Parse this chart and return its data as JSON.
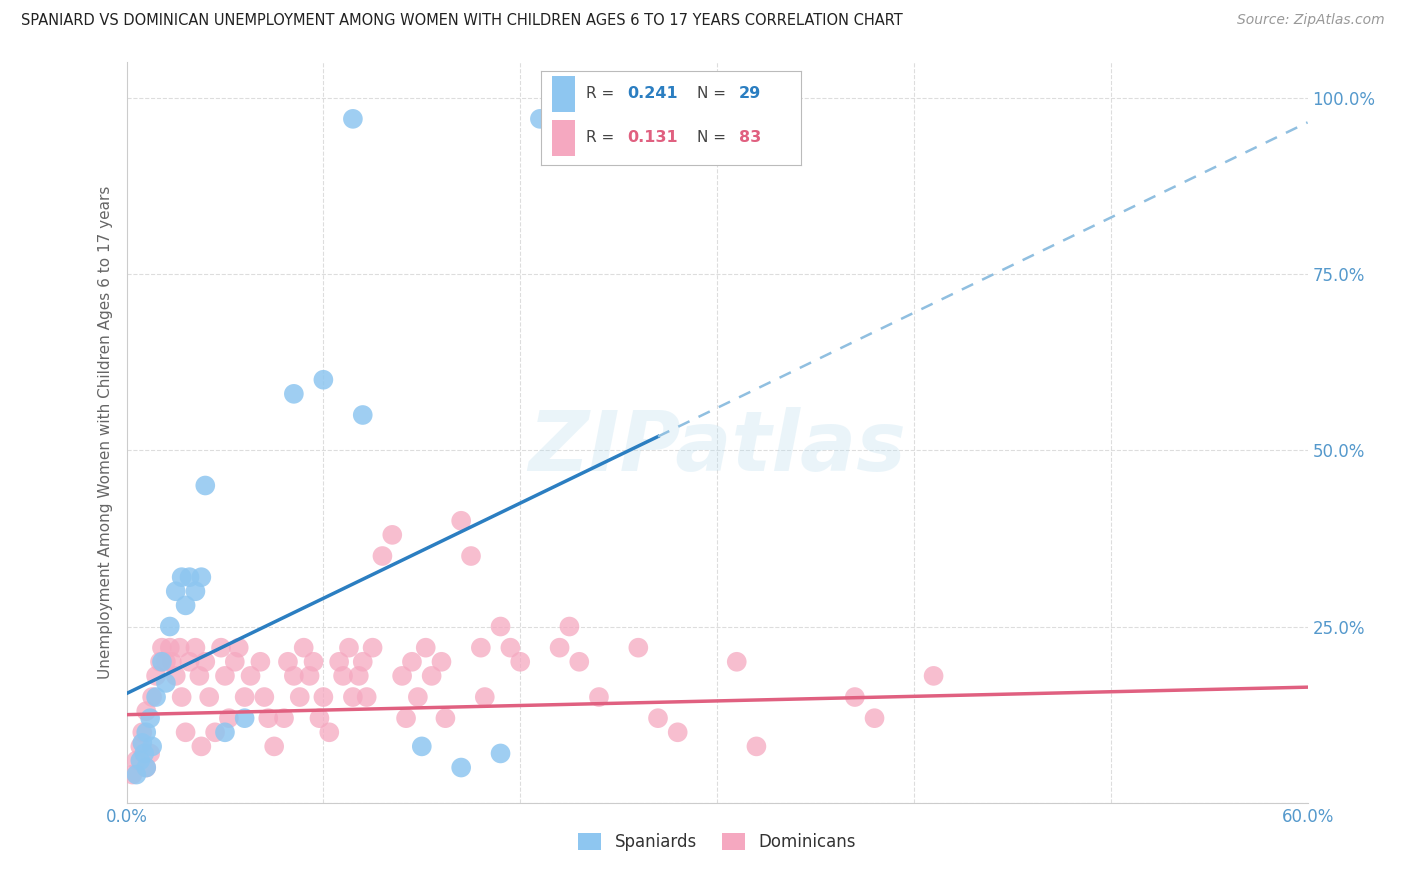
{
  "title": "SPANIARD VS DOMINICAN UNEMPLOYMENT AMONG WOMEN WITH CHILDREN AGES 6 TO 17 YEARS CORRELATION CHART",
  "source": "Source: ZipAtlas.com",
  "ylabel": "Unemployment Among Women with Children Ages 6 to 17 years",
  "xlim": [
    0.0,
    0.6
  ],
  "ylim": [
    0.0,
    1.05
  ],
  "xtick_positions": [
    0.0,
    0.1,
    0.2,
    0.3,
    0.4,
    0.5,
    0.6
  ],
  "xticklabels": [
    "0.0%",
    "",
    "",
    "",
    "",
    "",
    "60.0%"
  ],
  "yticks_right": [
    0.0,
    0.25,
    0.5,
    0.75,
    1.0
  ],
  "ytick_right_labels": [
    "",
    "25.0%",
    "50.0%",
    "75.0%",
    "100.0%"
  ],
  "spaniards_R": "0.241",
  "spaniards_N": "29",
  "dominicans_R": "0.131",
  "dominicans_N": "83",
  "spaniard_color": "#8EC6F0",
  "dominican_color": "#F5A8C0",
  "spaniard_line_color": "#2B7EC1",
  "dominican_line_color": "#E06080",
  "spaniard_line_solid_end": 0.27,
  "sp_slope": 1.35,
  "sp_intercept": 0.155,
  "do_slope": 0.065,
  "do_intercept": 0.125,
  "spaniard_scatter": [
    [
      0.005,
      0.04
    ],
    [
      0.007,
      0.06
    ],
    [
      0.008,
      0.085
    ],
    [
      0.009,
      0.07
    ],
    [
      0.01,
      0.05
    ],
    [
      0.01,
      0.1
    ],
    [
      0.012,
      0.12
    ],
    [
      0.013,
      0.08
    ],
    [
      0.015,
      0.15
    ],
    [
      0.018,
      0.2
    ],
    [
      0.02,
      0.17
    ],
    [
      0.022,
      0.25
    ],
    [
      0.025,
      0.3
    ],
    [
      0.028,
      0.32
    ],
    [
      0.03,
      0.28
    ],
    [
      0.032,
      0.32
    ],
    [
      0.035,
      0.3
    ],
    [
      0.038,
      0.32
    ],
    [
      0.04,
      0.45
    ],
    [
      0.05,
      0.1
    ],
    [
      0.06,
      0.12
    ],
    [
      0.085,
      0.58
    ],
    [
      0.1,
      0.6
    ],
    [
      0.12,
      0.55
    ],
    [
      0.15,
      0.08
    ],
    [
      0.17,
      0.05
    ],
    [
      0.19,
      0.07
    ],
    [
      0.115,
      0.97
    ],
    [
      0.21,
      0.97
    ]
  ],
  "dominican_scatter": [
    [
      0.003,
      0.04
    ],
    [
      0.005,
      0.06
    ],
    [
      0.007,
      0.08
    ],
    [
      0.008,
      0.1
    ],
    [
      0.01,
      0.13
    ],
    [
      0.01,
      0.05
    ],
    [
      0.012,
      0.07
    ],
    [
      0.013,
      0.15
    ],
    [
      0.015,
      0.18
    ],
    [
      0.017,
      0.2
    ],
    [
      0.018,
      0.22
    ],
    [
      0.02,
      0.2
    ],
    [
      0.022,
      0.22
    ],
    [
      0.023,
      0.2
    ],
    [
      0.025,
      0.18
    ],
    [
      0.027,
      0.22
    ],
    [
      0.028,
      0.15
    ],
    [
      0.03,
      0.1
    ],
    [
      0.032,
      0.2
    ],
    [
      0.035,
      0.22
    ],
    [
      0.037,
      0.18
    ],
    [
      0.038,
      0.08
    ],
    [
      0.04,
      0.2
    ],
    [
      0.042,
      0.15
    ],
    [
      0.045,
      0.1
    ],
    [
      0.048,
      0.22
    ],
    [
      0.05,
      0.18
    ],
    [
      0.052,
      0.12
    ],
    [
      0.055,
      0.2
    ],
    [
      0.057,
      0.22
    ],
    [
      0.06,
      0.15
    ],
    [
      0.063,
      0.18
    ],
    [
      0.068,
      0.2
    ],
    [
      0.07,
      0.15
    ],
    [
      0.072,
      0.12
    ],
    [
      0.075,
      0.08
    ],
    [
      0.08,
      0.12
    ],
    [
      0.082,
      0.2
    ],
    [
      0.085,
      0.18
    ],
    [
      0.088,
      0.15
    ],
    [
      0.09,
      0.22
    ],
    [
      0.093,
      0.18
    ],
    [
      0.095,
      0.2
    ],
    [
      0.098,
      0.12
    ],
    [
      0.1,
      0.15
    ],
    [
      0.103,
      0.1
    ],
    [
      0.108,
      0.2
    ],
    [
      0.11,
      0.18
    ],
    [
      0.113,
      0.22
    ],
    [
      0.115,
      0.15
    ],
    [
      0.118,
      0.18
    ],
    [
      0.12,
      0.2
    ],
    [
      0.122,
      0.15
    ],
    [
      0.125,
      0.22
    ],
    [
      0.13,
      0.35
    ],
    [
      0.135,
      0.38
    ],
    [
      0.14,
      0.18
    ],
    [
      0.142,
      0.12
    ],
    [
      0.145,
      0.2
    ],
    [
      0.148,
      0.15
    ],
    [
      0.152,
      0.22
    ],
    [
      0.155,
      0.18
    ],
    [
      0.16,
      0.2
    ],
    [
      0.162,
      0.12
    ],
    [
      0.17,
      0.4
    ],
    [
      0.175,
      0.35
    ],
    [
      0.18,
      0.22
    ],
    [
      0.182,
      0.15
    ],
    [
      0.19,
      0.25
    ],
    [
      0.195,
      0.22
    ],
    [
      0.2,
      0.2
    ],
    [
      0.22,
      0.22
    ],
    [
      0.225,
      0.25
    ],
    [
      0.23,
      0.2
    ],
    [
      0.24,
      0.15
    ],
    [
      0.26,
      0.22
    ],
    [
      0.27,
      0.12
    ],
    [
      0.28,
      0.1
    ],
    [
      0.31,
      0.2
    ],
    [
      0.32,
      0.08
    ],
    [
      0.37,
      0.15
    ],
    [
      0.38,
      0.12
    ],
    [
      0.41,
      0.18
    ]
  ],
  "watermark_text": "ZIPatlas",
  "background_color": "#FFFFFF",
  "grid_color": "#DDDDDD"
}
